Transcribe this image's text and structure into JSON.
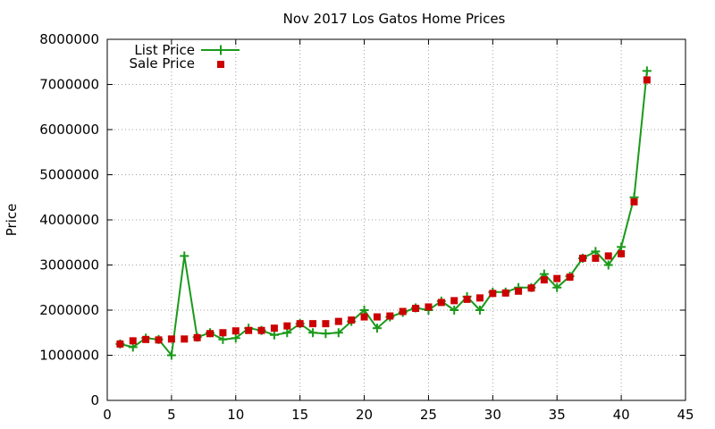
{
  "chart_data": {
    "type": "line",
    "title": "Nov 2017 Los Gatos Home Prices",
    "xlabel": "",
    "ylabel": "Price",
    "xlim": [
      0,
      45
    ],
    "ylim": [
      0,
      8000000
    ],
    "x_ticks": [
      0,
      5,
      10,
      15,
      20,
      25,
      30,
      35,
      40,
      45
    ],
    "y_ticks": [
      0,
      1000000,
      2000000,
      3000000,
      4000000,
      5000000,
      6000000,
      7000000,
      8000000
    ],
    "grid": true,
    "legend_position": "top-left",
    "x": [
      1,
      2,
      3,
      4,
      5,
      6,
      7,
      8,
      9,
      10,
      11,
      12,
      13,
      14,
      15,
      16,
      17,
      18,
      19,
      20,
      21,
      22,
      23,
      24,
      25,
      26,
      27,
      28,
      29,
      30,
      31,
      32,
      33,
      34,
      35,
      36,
      37,
      38,
      39,
      40,
      41,
      42
    ],
    "series": [
      {
        "name": "List Price",
        "style": "linespoints",
        "color": "#1a9a1a",
        "values": [
          1250000,
          1180000,
          1380000,
          1350000,
          1000000,
          3200000,
          1400000,
          1500000,
          1350000,
          1380000,
          1600000,
          1550000,
          1450000,
          1500000,
          1700000,
          1500000,
          1480000,
          1500000,
          1750000,
          2000000,
          1600000,
          1850000,
          1950000,
          2050000,
          2000000,
          2200000,
          2000000,
          2300000,
          2000000,
          2400000,
          2400000,
          2500000,
          2500000,
          2800000,
          2500000,
          2750000,
          3150000,
          3300000,
          3000000,
          3400000,
          4500000,
          7300000
        ]
      },
      {
        "name": "Sale Price",
        "style": "points",
        "color": "#cc0000",
        "values": [
          1250000,
          1320000,
          1350000,
          1340000,
          1360000,
          1360000,
          1390000,
          1480000,
          1500000,
          1540000,
          1550000,
          1550000,
          1600000,
          1650000,
          1700000,
          1700000,
          1700000,
          1750000,
          1780000,
          1850000,
          1850000,
          1870000,
          1970000,
          2040000,
          2070000,
          2170000,
          2210000,
          2240000,
          2270000,
          2370000,
          2380000,
          2420000,
          2490000,
          2670000,
          2700000,
          2730000,
          3150000,
          3150000,
          3200000,
          3250000,
          4400000,
          7100000
        ]
      }
    ]
  }
}
